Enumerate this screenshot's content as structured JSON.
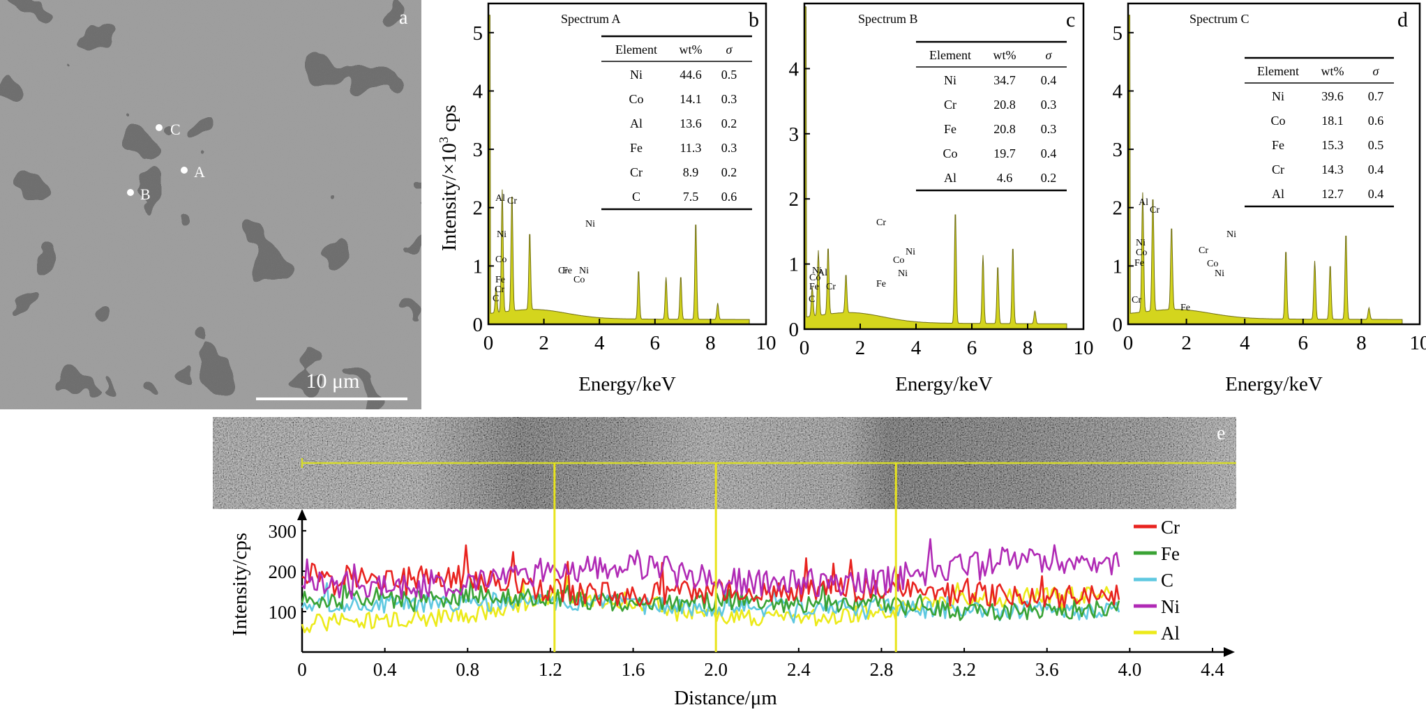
{
  "sem_panel": {
    "letter": "a",
    "points": [
      "C",
      "A",
      "B"
    ],
    "scale_label": "10 μm"
  },
  "spectra": [
    {
      "letter": "b",
      "title": "Spectrum A",
      "table_headers": [
        "Element",
        "wt%",
        "σ"
      ],
      "table_rows": [
        [
          "Ni",
          "44.6",
          "0.5"
        ],
        [
          "Co",
          "14.1",
          "0.3"
        ],
        [
          "Al",
          "13.6",
          "0.2"
        ],
        [
          "Fe",
          "11.3",
          "0.3"
        ],
        [
          "Cr",
          "8.9",
          "0.2"
        ],
        [
          "C",
          "7.5",
          "0.6"
        ]
      ],
      "peak_labels": [
        "C",
        "Cr",
        "Fe",
        "Co",
        "Ni",
        "Al",
        "Cr",
        "Cr",
        "Fe",
        "Co",
        "Ni",
        "Ni"
      ]
    },
    {
      "letter": "c",
      "title": "Spectrum B",
      "table_headers": [
        "Element",
        "wt%",
        "σ"
      ],
      "table_rows": [
        [
          "Ni",
          "34.7",
          "0.4"
        ],
        [
          "Cr",
          "20.8",
          "0.3"
        ],
        [
          "Fe",
          "20.8",
          "0.3"
        ],
        [
          "Co",
          "19.7",
          "0.4"
        ],
        [
          "Al",
          "4.6",
          "0.2"
        ]
      ],
      "peak_labels": [
        "C",
        "Fe",
        "Co",
        "Ni",
        "Al",
        "Cr",
        "Cr",
        "Fe",
        "Co",
        "Ni",
        "Ni"
      ]
    },
    {
      "letter": "d",
      "title": "Spectrum C",
      "table_headers": [
        "Element",
        "wt%",
        "σ"
      ],
      "table_rows": [
        [
          "Ni",
          "39.6",
          "0.7"
        ],
        [
          "Co",
          "18.1",
          "0.6"
        ],
        [
          "Fe",
          "15.3",
          "0.5"
        ],
        [
          "Cr",
          "14.3",
          "0.4"
        ],
        [
          "Al",
          "12.7",
          "0.4"
        ]
      ],
      "peak_labels": [
        "Cr",
        "Fe",
        "Co",
        "Ni",
        "Al",
        "Cr",
        "Cr",
        "Fe",
        "Co",
        "Ni",
        "Ni"
      ]
    }
  ],
  "spectrum_axes": {
    "ylabel_main": "Intensity/×10",
    "ylabel_sup": "3",
    "ylabel_tail": " cps",
    "xlabel": "Energy/keV"
  },
  "linescan": {
    "letter": "e",
    "ylabel": "Intensity/cps",
    "xlabel": "Distance/μm",
    "markers_um": [
      1.22,
      2.0,
      2.87
    ]
  },
  "chart_data": [
    {
      "type": "line",
      "title": "Spectrum A",
      "xlabel": "Energy/keV",
      "ylabel": "Intensity/×10^3 cps",
      "xlim": [
        0,
        10
      ],
      "ylim": [
        0,
        5.5
      ],
      "xticks": [
        0,
        2,
        4,
        6,
        8,
        10
      ],
      "yticks": [
        0,
        1,
        2,
        3,
        4,
        5
      ],
      "peaks": [
        {
          "label": "C",
          "x": 0.28,
          "y": 0.45
        },
        {
          "label": "Cr",
          "x": 0.5,
          "y": 2.1
        },
        {
          "label": "Ni",
          "x": 0.85,
          "y": 2.05
        },
        {
          "label": "Al",
          "x": 1.49,
          "y": 1.35
        },
        {
          "label": "Cr",
          "x": 5.41,
          "y": 0.85
        },
        {
          "label": "Fe",
          "x": 6.4,
          "y": 0.72
        },
        {
          "label": "Co",
          "x": 6.93,
          "y": 0.75
        },
        {
          "label": "Ni",
          "x": 7.47,
          "y": 1.7
        },
        {
          "label": "Ni",
          "x": 8.26,
          "y": 0.28
        }
      ]
    },
    {
      "type": "line",
      "title": "Spectrum B",
      "xlabel": "Energy/keV",
      "ylabel": "Intensity/×10^3 cps",
      "xlim": [
        0,
        10
      ],
      "ylim": [
        0,
        5.0
      ],
      "xticks": [
        0,
        2,
        4,
        6,
        8,
        10
      ],
      "yticks": [
        0,
        1,
        2,
        3,
        4
      ],
      "peaks": [
        {
          "label": "C",
          "x": 0.28,
          "y": 0.45
        },
        {
          "label": "Cr",
          "x": 0.5,
          "y": 1.0
        },
        {
          "label": "Ni",
          "x": 0.85,
          "y": 1.05
        },
        {
          "label": "Al",
          "x": 1.49,
          "y": 0.6
        },
        {
          "label": "Cr",
          "x": 5.41,
          "y": 1.75
        },
        {
          "label": "Fe",
          "x": 6.4,
          "y": 1.05
        },
        {
          "label": "Co",
          "x": 6.93,
          "y": 0.9
        },
        {
          "label": "Ni",
          "x": 7.47,
          "y": 1.2
        },
        {
          "label": "Ni",
          "x": 8.26,
          "y": 0.2
        }
      ]
    },
    {
      "type": "line",
      "title": "Spectrum C",
      "xlabel": "Energy/keV",
      "ylabel": "Intensity/×10^3 cps",
      "xlim": [
        0,
        10
      ],
      "ylim": [
        0,
        5.5
      ],
      "xticks": [
        0,
        2,
        4,
        6,
        8,
        10
      ],
      "yticks": [
        0,
        1,
        2,
        3,
        4,
        5
      ],
      "peaks": [
        {
          "label": "Cr",
          "x": 0.5,
          "y": 2.05
        },
        {
          "label": "Ni",
          "x": 0.85,
          "y": 2.0
        },
        {
          "label": "Al",
          "x": 1.49,
          "y": 1.45
        },
        {
          "label": "Cr",
          "x": 5.41,
          "y": 1.2
        },
        {
          "label": "Fe",
          "x": 6.4,
          "y": 1.0
        },
        {
          "label": "Co",
          "x": 6.93,
          "y": 0.95
        },
        {
          "label": "Ni",
          "x": 7.47,
          "y": 1.5
        },
        {
          "label": "Ni",
          "x": 8.26,
          "y": 0.2
        }
      ]
    },
    {
      "type": "line",
      "title": "",
      "xlabel": "Distance/μm",
      "ylabel": "Intensity/cps",
      "xlim": [
        0,
        4.5
      ],
      "ylim": [
        0,
        340
      ],
      "xticks": [
        0,
        0.4,
        0.8,
        1.2,
        1.6,
        2.0,
        2.4,
        2.8,
        3.2,
        3.6,
        4.0,
        4.4
      ],
      "yticks": [
        100,
        200,
        300
      ],
      "series": [
        {
          "name": "Cr",
          "color": "#e8231f",
          "segment_means": [
            [
              0.0,
              200
            ],
            [
              0.4,
              180
            ],
            [
              0.8,
              185
            ],
            [
              1.2,
              150
            ],
            [
              1.6,
              140
            ],
            [
              2.0,
              150
            ],
            [
              2.4,
              150
            ],
            [
              2.8,
              155
            ],
            [
              3.2,
              140
            ],
            [
              3.6,
              140
            ],
            [
              3.95,
              140
            ]
          ]
        },
        {
          "name": "Fe",
          "color": "#3aa335",
          "segment_means": [
            [
              0.0,
              130
            ],
            [
              0.4,
              130
            ],
            [
              0.8,
              135
            ],
            [
              1.2,
              135
            ],
            [
              1.6,
              120
            ],
            [
              2.0,
              125
            ],
            [
              2.4,
              120
            ],
            [
              2.8,
              120
            ],
            [
              3.2,
              100
            ],
            [
              3.6,
              105
            ],
            [
              3.95,
              105
            ]
          ]
        },
        {
          "name": "C",
          "color": "#5fc8e0",
          "segment_means": [
            [
              0.0,
              115
            ],
            [
              0.4,
              120
            ],
            [
              0.8,
              120
            ],
            [
              1.2,
              125
            ],
            [
              1.6,
              115
            ],
            [
              2.0,
              110
            ],
            [
              2.4,
              110
            ],
            [
              2.8,
              110
            ],
            [
              3.2,
              100
            ],
            [
              3.6,
              100
            ],
            [
              3.95,
              100
            ]
          ]
        },
        {
          "name": "Ni",
          "color": "#b02ab5",
          "segment_means": [
            [
              0.0,
              170
            ],
            [
              0.4,
              165
            ],
            [
              0.8,
              170
            ],
            [
              1.2,
              200
            ],
            [
              1.6,
              220
            ],
            [
              2.0,
              175
            ],
            [
              2.4,
              170
            ],
            [
              2.8,
              175
            ],
            [
              3.2,
              220
            ],
            [
              3.6,
              230
            ],
            [
              3.95,
              225
            ]
          ]
        },
        {
          "name": "Al",
          "color": "#ecea1a",
          "segment_means": [
            [
              0.0,
              70
            ],
            [
              0.4,
              80
            ],
            [
              0.8,
              90
            ],
            [
              1.2,
              140
            ],
            [
              1.6,
              125
            ],
            [
              2.0,
              95
            ],
            [
              2.4,
              80
            ],
            [
              2.8,
              95
            ],
            [
              3.2,
              130
            ],
            [
              3.6,
              140
            ],
            [
              3.95,
              140
            ]
          ]
        }
      ],
      "vertical_markers": [
        1.22,
        2.0,
        2.87
      ]
    }
  ]
}
